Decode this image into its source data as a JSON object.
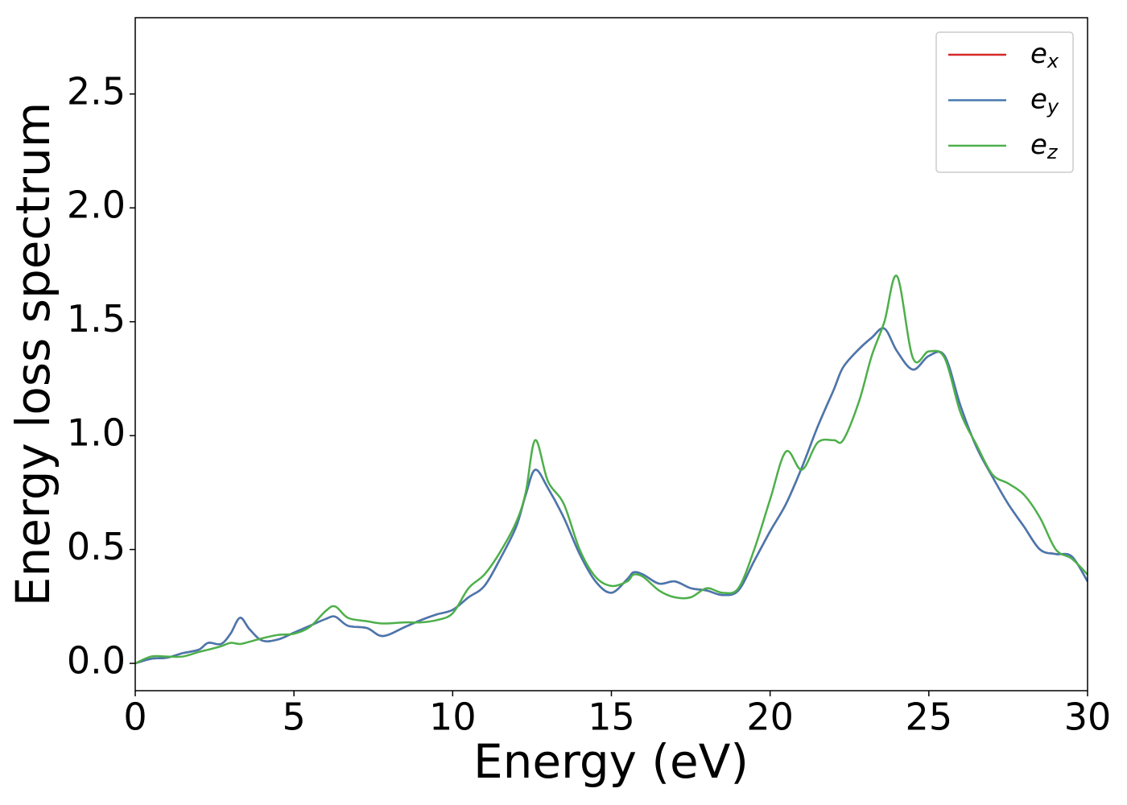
{
  "chart_data": {
    "type": "line",
    "xlabel": "Energy (eV)",
    "ylabel": "Energy loss spectrum",
    "x": [
      0,
      0.5,
      1,
      1.5,
      2,
      2.3,
      2.7,
      3,
      3.3,
      3.6,
      4,
      4.5,
      5,
      5.5,
      6,
      6.3,
      6.7,
      7.3,
      7.8,
      8.5,
      9,
      9.5,
      10,
      10.5,
      11,
      11.5,
      12,
      12.3,
      12.6,
      13,
      13.5,
      14,
      14.5,
      15,
      15.5,
      15.7,
      16,
      16.5,
      17,
      17.5,
      18,
      18.5,
      19,
      19.5,
      20,
      20.5,
      21,
      21.5,
      22,
      22.3,
      22.8,
      23.2,
      23.6,
      24,
      24.5,
      25,
      25.5,
      26,
      26.5,
      27,
      27.5,
      28,
      28.5,
      29,
      29.5,
      30
    ],
    "series": [
      {
        "name": "ex",
        "color": "#d62728",
        "values": [
          0.0,
          0.02,
          0.025,
          0.045,
          0.06,
          0.09,
          0.085,
          0.13,
          0.2,
          0.15,
          0.1,
          0.105,
          0.135,
          0.165,
          0.195,
          0.205,
          0.165,
          0.155,
          0.12,
          0.16,
          0.19,
          0.215,
          0.235,
          0.29,
          0.34,
          0.46,
          0.6,
          0.74,
          0.85,
          0.77,
          0.64,
          0.48,
          0.36,
          0.31,
          0.37,
          0.4,
          0.39,
          0.35,
          0.36,
          0.33,
          0.32,
          0.3,
          0.32,
          0.45,
          0.58,
          0.7,
          0.86,
          1.04,
          1.2,
          1.3,
          1.38,
          1.43,
          1.47,
          1.37,
          1.29,
          1.35,
          1.35,
          1.13,
          0.95,
          0.82,
          0.7,
          0.6,
          0.5,
          0.48,
          0.47,
          0.36
        ]
      },
      {
        "name": "ey",
        "color": "#4678b0",
        "values": [
          0.0,
          0.02,
          0.025,
          0.045,
          0.06,
          0.09,
          0.085,
          0.13,
          0.2,
          0.15,
          0.1,
          0.105,
          0.135,
          0.165,
          0.195,
          0.205,
          0.165,
          0.155,
          0.12,
          0.16,
          0.19,
          0.215,
          0.235,
          0.29,
          0.34,
          0.46,
          0.6,
          0.74,
          0.85,
          0.77,
          0.64,
          0.48,
          0.36,
          0.31,
          0.37,
          0.4,
          0.39,
          0.35,
          0.36,
          0.33,
          0.32,
          0.3,
          0.32,
          0.45,
          0.58,
          0.7,
          0.86,
          1.04,
          1.2,
          1.3,
          1.38,
          1.43,
          1.47,
          1.37,
          1.29,
          1.35,
          1.35,
          1.13,
          0.95,
          0.82,
          0.7,
          0.6,
          0.5,
          0.48,
          0.47,
          0.36
        ]
      },
      {
        "name": "ez",
        "color": "#4daf4a",
        "values": [
          0.0,
          0.03,
          0.03,
          0.03,
          0.05,
          0.06,
          0.075,
          0.09,
          0.085,
          0.095,
          0.11,
          0.125,
          0.13,
          0.16,
          0.23,
          0.25,
          0.2,
          0.185,
          0.175,
          0.18,
          0.18,
          0.19,
          0.22,
          0.33,
          0.39,
          0.49,
          0.62,
          0.75,
          0.98,
          0.8,
          0.7,
          0.5,
          0.38,
          0.34,
          0.36,
          0.39,
          0.38,
          0.32,
          0.29,
          0.29,
          0.33,
          0.31,
          0.33,
          0.5,
          0.72,
          0.93,
          0.85,
          0.97,
          0.98,
          0.98,
          1.15,
          1.35,
          1.5,
          1.7,
          1.34,
          1.37,
          1.34,
          1.1,
          0.96,
          0.83,
          0.79,
          0.74,
          0.64,
          0.5,
          0.46,
          0.39
        ]
      }
    ],
    "xlim": [
      0,
      30
    ],
    "xticks": [
      0,
      5,
      10,
      15,
      20,
      25,
      30
    ],
    "ylim": [
      -0.12,
      2.835
    ],
    "yticks": [
      {
        "value": 0,
        "label": "0.0"
      },
      0.5,
      {
        "value": 1,
        "label": "1.0"
      },
      1.5,
      {
        "value": 2,
        "label": "2.0"
      },
      2.5
    ],
    "legend": "upper right"
  }
}
